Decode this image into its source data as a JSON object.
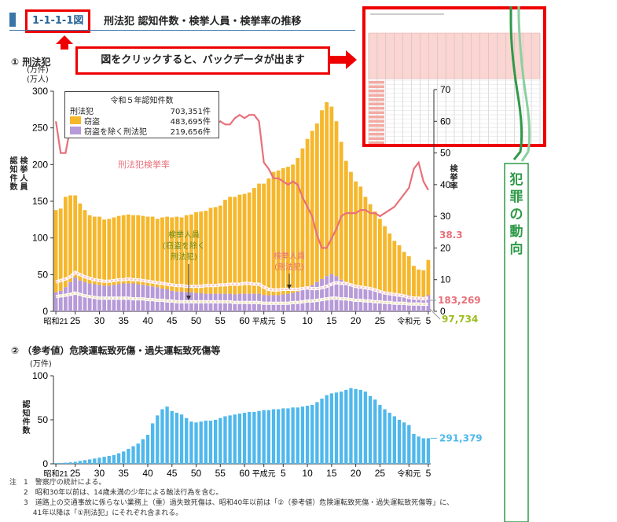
{
  "header": {
    "figure_id": "1-1-1-1図",
    "title": "刑法犯 認知件数・検挙人員・検挙率の推移"
  },
  "banner_text": "図をクリックすると、バックデータが出ます",
  "side_label": "犯罪の動向",
  "section1": {
    "heading": "① 刑法犯",
    "unit_top": "(万件)",
    "unit_bottom": "(万人)",
    "left_axis_label": "認知件数",
    "left_axis_label2": "検挙人員",
    "right_axis_label": "検挙率"
  },
  "legend": {
    "title": "令和５年認知件数",
    "total_label": "刑法犯",
    "total_value": "703,351件",
    "items": [
      {
        "name": "窃盗",
        "value": "483,695件",
        "color": "#f6b72b"
      },
      {
        "name": "窃盗を除く刑法犯",
        "value": "219,656件",
        "color": "#b79ad8"
      }
    ]
  },
  "annotations": {
    "clearance_rate": "刑法犯検挙率",
    "arrested_excl_theft": [
      "検挙人員",
      "(窃盗を除く",
      "刑法犯)"
    ],
    "arrested_total": [
      "検挙人員",
      "(刑法犯)"
    ],
    "end_rate": "38.3",
    "end_arrested_total": "183,269",
    "end_arrested_excl": "97,734"
  },
  "section2": {
    "heading": "② （参考値）危険運転致死傷・過失運転致死傷等",
    "unit": "(万件)",
    "axis_label": "認知件数",
    "end_value": "291,379"
  },
  "notes": [
    "注　1　警察庁の統計による。",
    "　　2　昭和30年以前は、14歳未満の少年による触法行為を含む。",
    "　　3　道路上の交通事故に係らない業務上（重）過失致死傷は、昭和40年以前は「②（参考値）危険運転致死傷・過失運転致死傷等」に、",
    "　　　 41年以降は「①刑法犯」にそれぞれ含まれる。"
  ],
  "colors": {
    "theft": "#f6b72b",
    "other": "#b79ad8",
    "rate_line": "#e8707a",
    "arrest_line": "#f0c8cc",
    "traffic": "#4fb8ec",
    "accent_red": "#e00000",
    "side_green": "#2e9a48",
    "end_green": "#9cbc1e"
  },
  "chart_data": [
    {
      "type": "bar",
      "title": "刑法犯",
      "x": [
        1946,
        1947,
        1948,
        1949,
        1950,
        1951,
        1952,
        1953,
        1954,
        1955,
        1956,
        1957,
        1958,
        1959,
        1960,
        1961,
        1962,
        1963,
        1964,
        1965,
        1966,
        1967,
        1968,
        1969,
        1970,
        1971,
        1972,
        1973,
        1974,
        1975,
        1976,
        1977,
        1978,
        1979,
        1980,
        1981,
        1982,
        1983,
        1984,
        1985,
        1986,
        1987,
        1988,
        1989,
        1990,
        1991,
        1992,
        1993,
        1994,
        1995,
        1996,
        1997,
        1998,
        1999,
        2000,
        2001,
        2002,
        2003,
        2004,
        2005,
        2006,
        2007,
        2008,
        2009,
        2010,
        2011,
        2012,
        2013,
        2014,
        2015,
        2016,
        2017,
        2018,
        2019,
        2020,
        2021,
        2022,
        2023
      ],
      "x_tick_labels": [
        "昭和21",
        "25",
        "30",
        "35",
        "40",
        "45",
        "50",
        "55",
        "60",
        "平成元",
        "5",
        "10",
        "15",
        "20",
        "25",
        "令和元",
        "5"
      ],
      "x_tick_years": [
        1946,
        1950,
        1955,
        1960,
        1965,
        1970,
        1975,
        1980,
        1985,
        1989,
        1993,
        1998,
        2003,
        2008,
        2013,
        2019,
        2023
      ],
      "ylabel": "認知件数",
      "ylim": [
        0,
        300
      ],
      "y_ticks": [
        0,
        50,
        100,
        150,
        200,
        250,
        300
      ],
      "y2label": "検挙率",
      "y2lim": [
        0,
        100
      ],
      "y2_ticks": [
        0,
        10,
        20,
        30,
        40,
        50,
        60,
        70
      ],
      "series": [
        {
          "name": "窃盗",
          "values": [
            112,
            112,
            123,
            118,
            112,
            105,
            98,
            93,
            92,
            93,
            90,
            91,
            92,
            93,
            93,
            94,
            93,
            94,
            94,
            94,
            95,
            93,
            97,
            99,
            100,
            102,
            101,
            105,
            106,
            110,
            111,
            113,
            117,
            118,
            120,
            128,
            132,
            133,
            135,
            136,
            138,
            144,
            150,
            152,
            159,
            168,
            170,
            172,
            173,
            175,
            182,
            192,
            202,
            210,
            216,
            230,
            237,
            228,
            211,
            188,
            167,
            155,
            145,
            139,
            126,
            117,
            108,
            99,
            90,
            81,
            72,
            66,
            58,
            53,
            42,
            38,
            36,
            48
          ]
        },
        {
          "name": "窃盗を除く刑法犯",
          "values": [
            26,
            28,
            33,
            40,
            46,
            42,
            40,
            38,
            37,
            36,
            35,
            35,
            36,
            37,
            38,
            38,
            38,
            37,
            36,
            35,
            34,
            33,
            31,
            30,
            28,
            27,
            27,
            26,
            26,
            25,
            25,
            24,
            24,
            24,
            24,
            24,
            24,
            23,
            24,
            24,
            24,
            24,
            24,
            22,
            22,
            22,
            22,
            23,
            24,
            25,
            27,
            30,
            33,
            36,
            40,
            44,
            48,
            51,
            48,
            43,
            38,
            35,
            32,
            31,
            30,
            29,
            28,
            27,
            26,
            25,
            24,
            24,
            23,
            22,
            20,
            19,
            20,
            22
          ]
        },
        {
          "name": "刑法犯検挙率",
          "axis": "right",
          "values": [
            60,
            50,
            50,
            58,
            60,
            62,
            65,
            67,
            68,
            68,
            67,
            66,
            66,
            66,
            64,
            64,
            63,
            63,
            60,
            57,
            55,
            55,
            55,
            56,
            57,
            58,
            58,
            58,
            57,
            57,
            57,
            58,
            58,
            59,
            60,
            59,
            59,
            61,
            62,
            61,
            62,
            62,
            60,
            47,
            45,
            42,
            42,
            41,
            40,
            41,
            40,
            36,
            33,
            30,
            24,
            20,
            20,
            23,
            26,
            30,
            31,
            31,
            31,
            32,
            32,
            31,
            31,
            30,
            31,
            32,
            33,
            35,
            37,
            39,
            45,
            47,
            41,
            38.3
          ]
        },
        {
          "name": "検挙人員(刑法犯)",
          "values": [
            40,
            42,
            44,
            47,
            53,
            50,
            47,
            45,
            43,
            42,
            41,
            41,
            42,
            43,
            43,
            44,
            43,
            43,
            42,
            41,
            40,
            39,
            38,
            37,
            36,
            35,
            35,
            34,
            34,
            34,
            34,
            35,
            35,
            35,
            36,
            36,
            37,
            37,
            37,
            38,
            38,
            37,
            37,
            33,
            30,
            29,
            29,
            30,
            30,
            30,
            30,
            31,
            32,
            31,
            31,
            32,
            34,
            37,
            39,
            38,
            38,
            36,
            34,
            33,
            32,
            31,
            29,
            27,
            25,
            24,
            23,
            22,
            21,
            19,
            18,
            18,
            17,
            18.3
          ]
        },
        {
          "name": "検挙人員(窃盗を除く刑法犯)",
          "values": [
            20,
            21,
            22,
            23,
            25,
            23,
            21,
            20,
            19,
            18,
            18,
            18,
            18,
            18,
            18,
            18,
            17,
            17,
            17,
            16,
            16,
            15,
            15,
            14,
            14,
            13,
            13,
            13,
            13,
            13,
            13,
            13,
            13,
            13,
            13,
            13,
            13,
            12,
            12,
            12,
            12,
            12,
            12,
            11,
            11,
            11,
            11,
            11,
            11,
            12,
            12,
            13,
            14,
            14,
            15,
            16,
            17,
            18,
            18,
            17,
            17,
            16,
            15,
            15,
            14,
            14,
            13,
            13,
            12,
            12,
            11,
            11,
            11,
            10,
            10,
            10,
            9.5,
            9.8
          ]
        }
      ]
    },
    {
      "type": "bar",
      "title": "（参考値）危険運転致死傷・過失運転致死傷等",
      "x": [
        1946,
        1947,
        1948,
        1949,
        1950,
        1951,
        1952,
        1953,
        1954,
        1955,
        1956,
        1957,
        1958,
        1959,
        1960,
        1961,
        1962,
        1963,
        1964,
        1965,
        1966,
        1967,
        1968,
        1969,
        1970,
        1971,
        1972,
        1973,
        1974,
        1975,
        1976,
        1977,
        1978,
        1979,
        1980,
        1981,
        1982,
        1983,
        1984,
        1985,
        1986,
        1987,
        1988,
        1989,
        1990,
        1991,
        1992,
        1993,
        1994,
        1995,
        1996,
        1997,
        1998,
        1999,
        2000,
        2001,
        2002,
        2003,
        2004,
        2005,
        2006,
        2007,
        2008,
        2009,
        2010,
        2011,
        2012,
        2013,
        2014,
        2015,
        2016,
        2017,
        2018,
        2019,
        2020,
        2021,
        2022,
        2023
      ],
      "ylabel": "認知件数",
      "ylim": [
        0,
        100
      ],
      "y_ticks": [
        0,
        50,
        100
      ],
      "series": [
        {
          "name": "危険運転致死傷・過失運転致死傷等",
          "values": [
            0.8,
            1.0,
            1.3,
            1.7,
            2.3,
            3.3,
            4.2,
            5,
            6,
            7,
            8,
            9,
            10,
            12,
            14,
            17,
            20,
            23,
            28,
            33,
            46,
            55,
            62,
            65,
            60,
            58,
            56,
            52,
            48,
            47,
            48,
            49,
            49,
            50,
            52,
            54,
            55,
            56,
            57,
            58,
            59,
            59,
            60,
            61,
            61,
            62,
            62,
            63,
            63,
            64,
            64,
            65,
            66,
            67,
            70,
            74,
            78,
            80,
            81,
            82,
            84,
            86,
            85,
            84,
            82,
            77,
            73,
            67,
            62,
            58,
            54,
            50,
            47,
            44,
            34,
            31,
            29,
            29.1
          ]
        }
      ]
    }
  ]
}
